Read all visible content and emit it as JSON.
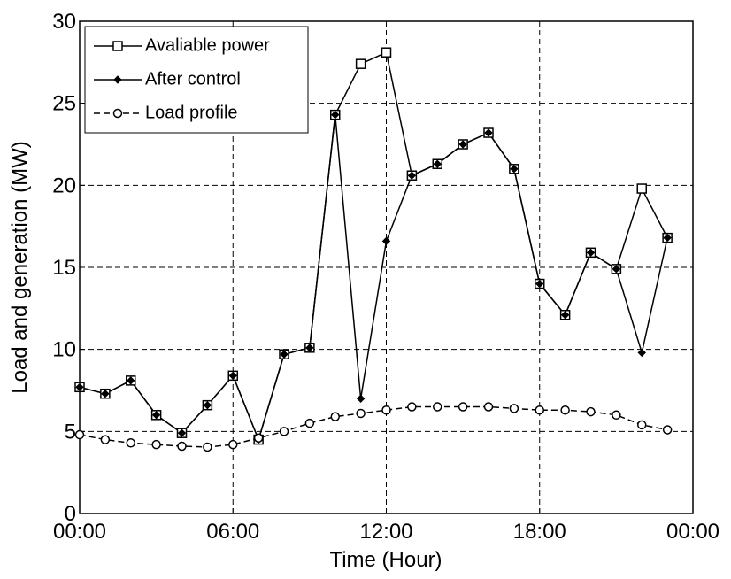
{
  "chart_data": {
    "type": "line",
    "xlabel": "Time (Hour)",
    "ylabel": "Load and generation (MW)",
    "x": [
      0,
      1,
      2,
      3,
      4,
      5,
      6,
      7,
      8,
      9,
      10,
      11,
      12,
      13,
      14,
      15,
      16,
      17,
      18,
      19,
      20,
      21,
      22,
      23
    ],
    "series": [
      {
        "name": "Avaliable power",
        "color": "#000000",
        "marker": "square",
        "dash": "solid",
        "values": [
          7.7,
          7.3,
          8.1,
          6.0,
          4.9,
          6.6,
          8.4,
          4.5,
          9.7,
          10.1,
          24.3,
          27.4,
          28.1,
          20.6,
          21.3,
          22.5,
          23.2,
          21.0,
          14.0,
          12.1,
          15.9,
          14.9,
          19.8,
          16.8
        ]
      },
      {
        "name": "After control",
        "color": "#000000",
        "marker": "diamond",
        "dash": "solid",
        "values": [
          7.7,
          7.3,
          8.1,
          6.0,
          4.9,
          6.6,
          8.4,
          4.5,
          9.7,
          10.1,
          24.3,
          7.0,
          16.6,
          20.6,
          21.3,
          22.5,
          23.2,
          21.0,
          14.0,
          12.1,
          15.9,
          14.9,
          9.8,
          16.8
        ]
      },
      {
        "name": "Load profile",
        "color": "#000000",
        "marker": "circle",
        "dash": "dashed",
        "values": [
          4.8,
          4.5,
          4.3,
          4.2,
          4.1,
          4.05,
          4.2,
          4.6,
          5.0,
          5.5,
          5.9,
          6.1,
          6.3,
          6.5,
          6.5,
          6.5,
          6.5,
          6.4,
          6.3,
          6.3,
          6.2,
          6.0,
          5.4,
          5.1
        ]
      }
    ],
    "xlim": [
      0,
      24
    ],
    "xticks": [
      {
        "value": 0,
        "label": "00:00"
      },
      {
        "value": 6,
        "label": "06:00"
      },
      {
        "value": 12,
        "label": "12:00"
      },
      {
        "value": 18,
        "label": "18:00"
      },
      {
        "value": 24,
        "label": "00:00"
      }
    ],
    "ylim": [
      0,
      30
    ],
    "yticks": [
      0,
      5,
      10,
      15,
      20,
      25,
      30
    ],
    "grid": true,
    "legend": "top-left"
  }
}
